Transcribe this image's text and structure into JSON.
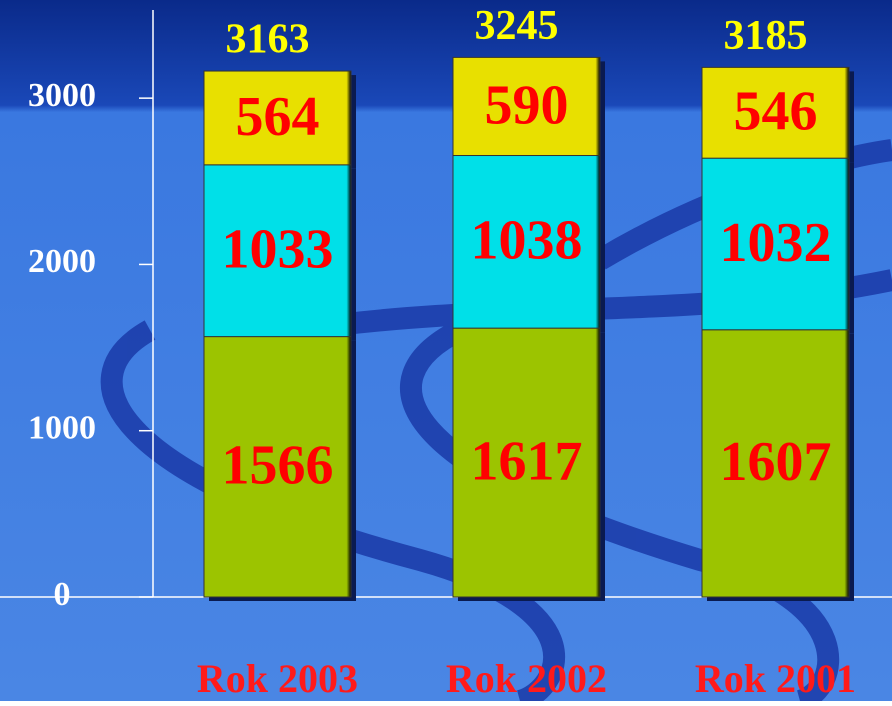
{
  "chart_data": {
    "type": "stacked-bar",
    "categories": [
      "Rok 2003",
      "Rok 2002",
      "Rok 2001"
    ],
    "series": [
      {
        "color": "#9cc400",
        "values": [
          1566,
          1617,
          1607
        ]
      },
      {
        "color": "#00e0e8",
        "values": [
          1033,
          1038,
          1032
        ]
      },
      {
        "color": "#e8e000",
        "values": [
          564,
          590,
          546
        ]
      }
    ],
    "totals": [
      3163,
      3245,
      3185
    ],
    "ylim": [
      0,
      3500
    ],
    "yticks": [
      0,
      1000,
      2000,
      3000
    ]
  }
}
